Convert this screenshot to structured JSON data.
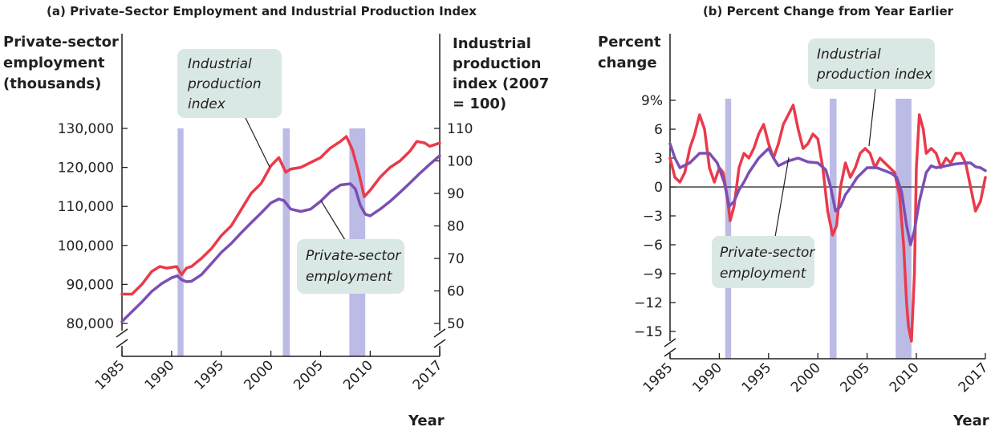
{
  "colors": {
    "employment": "#7b4fb3",
    "industrial": "#ea3a4b",
    "recession": "#bcbbe6",
    "callout_bg": "#d9e8e4",
    "axis": "#231f20"
  },
  "chart_data": [
    {
      "type": "line",
      "title": "(a) Private–Sector Employment and Industrial Production Index",
      "ylabel_left": [
        "Private-sector",
        "employment",
        "(thousands)"
      ],
      "ylabel_right": [
        "Industrial",
        "production",
        "index (2007",
        "= 100)"
      ],
      "xlabel": "Year",
      "xlim": [
        1985,
        2017
      ],
      "ylim_left": [
        76000,
        132000
      ],
      "ylim_right": [
        45,
        110
      ],
      "x_ticks": [
        "1985",
        "1990",
        "1995",
        "2000",
        "2005",
        "2010",
        "2017"
      ],
      "x_tick_values": [
        1985,
        1990,
        1995,
        2000,
        2005,
        2010,
        2017
      ],
      "y_left_ticks": [
        "130,000",
        "120,000",
        "110,000",
        "100,000",
        "90,000",
        "80,000"
      ],
      "y_left_tick_values": [
        130000,
        120000,
        110000,
        100000,
        90000,
        80000
      ],
      "y_right_ticks": [
        "110",
        "100",
        "90",
        "80",
        "70",
        "60",
        "50"
      ],
      "y_right_tick_values": [
        110,
        100,
        90,
        80,
        70,
        60,
        50
      ],
      "axis_break": true,
      "recessions": [
        [
          1990.6,
          1991.2
        ],
        [
          2001.2,
          2001.9
        ],
        [
          2007.9,
          2009.5
        ]
      ],
      "callouts": [
        {
          "lines": [
            "Industrial",
            "production",
            "index"
          ],
          "series": "industrial"
        },
        {
          "lines": [
            "Private-sector",
            "employment"
          ],
          "series": "employment"
        }
      ],
      "series": [
        {
          "name": "Private-sector employment",
          "key": "employment",
          "axis": "left",
          "x": [
            1985,
            1986,
            1987,
            1988,
            1989,
            1990,
            1990.6,
            1991,
            1991.5,
            1992,
            1993,
            1994,
            1995,
            1996,
            1997,
            1998,
            1999,
            2000,
            2000.8,
            2001.3,
            2002,
            2003,
            2004,
            2005,
            2006,
            2007,
            2008,
            2008.5,
            2009,
            2009.5,
            2010,
            2011,
            2012,
            2013,
            2014,
            2015,
            2016,
            2017
          ],
          "y": [
            80500,
            83000,
            85500,
            88200,
            90200,
            91700,
            92200,
            91200,
            90700,
            90800,
            92500,
            95300,
            98200,
            100500,
            103200,
            105800,
            108300,
            110900,
            111900,
            111500,
            109300,
            108700,
            109300,
            111300,
            113800,
            115500,
            115800,
            114500,
            110300,
            108000,
            107600,
            109300,
            111300,
            113600,
            116000,
            118500,
            120800,
            123000
          ]
        },
        {
          "name": "Industrial production index",
          "key": "industrial",
          "axis": "right",
          "x": [
            1985,
            1986,
            1987,
            1988,
            1988.8,
            1989.5,
            1990.5,
            1991,
            1991.5,
            1992,
            1993,
            1994,
            1995,
            1996,
            1997,
            1998,
            1999,
            2000,
            2000.8,
            2001.5,
            2002,
            2003,
            2004,
            2005,
            2006,
            2007,
            2007.6,
            2008.2,
            2008.8,
            2009.4,
            2010,
            2011,
            2012,
            2013,
            2014,
            2014.7,
            2015.5,
            2016,
            2017
          ],
          "y": [
            59,
            59,
            62,
            66,
            67.5,
            67,
            67.5,
            65,
            67,
            67.5,
            70,
            73,
            77,
            80,
            85,
            90,
            93,
            98.5,
            101,
            96.5,
            97.5,
            98,
            99.5,
            101,
            104,
            106,
            107.5,
            103.5,
            97,
            89,
            91,
            95,
            98,
            100,
            103,
            106,
            105.5,
            104.5,
            105.5
          ]
        }
      ]
    },
    {
      "type": "line",
      "title": "(b) Percent Change from Year Earlier",
      "ylabel": [
        "Percent",
        "change"
      ],
      "xlabel": "Year",
      "xlim": [
        1985,
        2017
      ],
      "ylim": [
        -17,
        9
      ],
      "x_ticks": [
        "1985",
        "1990",
        "1995",
        "2000",
        "2005",
        "2010",
        "2017"
      ],
      "x_tick_values": [
        1985,
        1990,
        1995,
        2000,
        2005,
        2010,
        2017
      ],
      "y_ticks": [
        "9%",
        "6",
        "3",
        "0",
        "−3",
        "−6",
        "−9",
        "−12",
        "−15"
      ],
      "y_tick_values": [
        9,
        6,
        3,
        0,
        -3,
        -6,
        -9,
        -12,
        -15
      ],
      "zero_line": true,
      "axis_break": true,
      "recessions": [
        [
          1990.6,
          1991.2
        ],
        [
          2001.2,
          2001.9
        ],
        [
          2007.9,
          2009.5
        ]
      ],
      "callouts": [
        {
          "lines": [
            "Industrial",
            "production index"
          ],
          "series": "industrial"
        },
        {
          "lines": [
            "Private-sector",
            "employment"
          ],
          "series": "employment"
        }
      ],
      "series": [
        {
          "name": "Industrial production index",
          "key": "industrial",
          "x": [
            1985,
            1985.5,
            1986,
            1986.5,
            1987,
            1987.5,
            1988,
            1988.5,
            1989,
            1989.5,
            1990,
            1990.4,
            1990.8,
            1991.1,
            1991.5,
            1992,
            1992.5,
            1993,
            1993.5,
            1994,
            1994.5,
            1995,
            1995.5,
            1996,
            1996.5,
            1997,
            1997.5,
            1998,
            1998.5,
            1999,
            1999.5,
            2000,
            2000.5,
            2001,
            2001.5,
            2001.9,
            2002.3,
            2002.8,
            2003.3,
            2003.8,
            2004.3,
            2004.8,
            2005.3,
            2005.8,
            2006.3,
            2006.8,
            2007.3,
            2007.8,
            2008.3,
            2008.7,
            2009,
            2009.2,
            2009.5,
            2009.8,
            2010,
            2010.3,
            2010.7,
            2011,
            2011.5,
            2012,
            2012.5,
            2013,
            2013.5,
            2014,
            2014.5,
            2015,
            2015.5,
            2016,
            2016.5,
            2017
          ],
          "y": [
            3,
            1,
            0.5,
            1.5,
            4,
            5.5,
            7.5,
            6,
            2,
            0.5,
            2,
            1.5,
            -1,
            -3.5,
            -2,
            2,
            3.5,
            3,
            4,
            5.5,
            6.5,
            4.5,
            3,
            4.5,
            6.5,
            7.5,
            8.5,
            6,
            4,
            4.5,
            5.5,
            5,
            2,
            -2.5,
            -5,
            -4,
            0,
            2.5,
            1,
            2,
            3.5,
            4,
            3.5,
            2,
            3,
            2.5,
            2,
            1.5,
            -1,
            -6,
            -12,
            -14.5,
            -16,
            -9,
            2,
            7.5,
            6,
            3.5,
            4,
            3.5,
            2,
            3,
            2.5,
            3.5,
            3.5,
            2.5,
            0,
            -2.5,
            -1.5,
            1
          ]
        },
        {
          "name": "Private-sector employment",
          "key": "employment",
          "x": [
            1985,
            1985.5,
            1986,
            1987,
            1988,
            1989,
            1989.8,
            1990.5,
            1991,
            1991.5,
            1992,
            1992.5,
            1993,
            1994,
            1995,
            1995.5,
            1996,
            1997,
            1998,
            1999,
            2000,
            2000.8,
            2001.3,
            2001.8,
            2002.3,
            2002.8,
            2003.5,
            2004,
            2004.5,
            2005,
            2006,
            2006.5,
            2007,
            2007.5,
            2008,
            2008.5,
            2009,
            2009.4,
            2009.8,
            2010.3,
            2011,
            2011.5,
            2012,
            2013,
            2014,
            2015,
            2015.5,
            2016,
            2016.5,
            2017
          ],
          "y": [
            4.5,
            3,
            2,
            2.5,
            3.5,
            3.5,
            2.5,
            0.5,
            -2,
            -1.5,
            -0.3,
            0.5,
            1.5,
            3,
            4,
            3,
            2.2,
            2.7,
            3,
            2.6,
            2.5,
            1.8,
            0,
            -2.5,
            -2,
            -0.8,
            0.2,
            1,
            1.5,
            2,
            2,
            1.8,
            1.6,
            1.4,
            1,
            -0.5,
            -4,
            -6,
            -4.5,
            -1.5,
            1.5,
            2.2,
            2,
            2.2,
            2.4,
            2.5,
            2.5,
            2.1,
            2,
            1.7
          ]
        }
      ]
    }
  ]
}
